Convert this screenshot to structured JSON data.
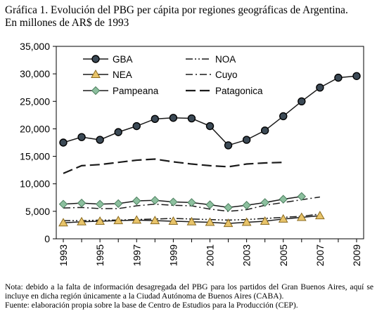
{
  "title": {
    "line1": "Gráfica 1. Evolución del PBG per cápita por regiones geográficas de Argentina.",
    "line2": "En millones de AR$ de 1993"
  },
  "notes": {
    "nota": "Nota: debido a la falta de información desagregada del PBG para los partidos del Gran Buenos Aires, aquí se incluye en dicha región únicamente a la Ciudad Autónoma de Buenos Aires (CABA).",
    "fuente": "Fuente: elaboración propia sobre la base de Centro de Estudios para la Producción (CEP)."
  },
  "chart_data": {
    "type": "line",
    "x": [
      1993,
      1994,
      1995,
      1996,
      1997,
      1998,
      1999,
      2000,
      2001,
      2002,
      2003,
      2004,
      2005,
      2006,
      2007,
      2008,
      2009
    ],
    "ylim": [
      0,
      35000
    ],
    "yticks": [
      0,
      5000,
      10000,
      15000,
      20000,
      25000,
      30000,
      35000
    ],
    "ytick_labels": [
      "0",
      "5,000",
      "10,000",
      "15,000",
      "20,000",
      "25,000",
      "30,000",
      "35,000"
    ],
    "xtick_labels": [
      "1993",
      "1995",
      "1997",
      "1999",
      "2001",
      "2003",
      "2005",
      "2007",
      "2009"
    ],
    "grid": false,
    "legend_position": "top",
    "series": [
      {
        "name": "GBA",
        "color": "#1a1a1a",
        "style": "solid",
        "marker": "circle",
        "values": [
          17500,
          18500,
          18000,
          19400,
          20500,
          21800,
          22000,
          21900,
          20500,
          17000,
          18000,
          19700,
          22300,
          25000,
          27500,
          29300,
          29600
        ]
      },
      {
        "name": "NEA",
        "color": "#1a1a1a",
        "style": "solid",
        "marker": "triangle",
        "values": [
          2900,
          3100,
          3200,
          3300,
          3400,
          3300,
          3200,
          3100,
          3000,
          2800,
          3000,
          3200,
          3600,
          3900,
          4200,
          null,
          null
        ]
      },
      {
        "name": "Pampeana",
        "color": "#1a1a1a",
        "style": "solid",
        "marker": "diamond",
        "values": [
          6300,
          6500,
          6300,
          6400,
          6900,
          7000,
          6700,
          6600,
          6200,
          5700,
          6100,
          6600,
          7200,
          7700,
          null,
          null,
          null
        ]
      },
      {
        "name": "NOA",
        "color": "#1a1a1a",
        "style": "dashdotdot",
        "marker": "none",
        "values": [
          3300,
          3300,
          3400,
          3400,
          3500,
          3600,
          3700,
          3600,
          3500,
          3400,
          3500,
          3700,
          3900,
          4100,
          4500,
          null,
          null
        ]
      },
      {
        "name": "Cuyo",
        "color": "#1a1a1a",
        "style": "dashdot",
        "marker": "none",
        "values": [
          5600,
          5700,
          5500,
          5500,
          6000,
          6300,
          6100,
          6000,
          5400,
          5000,
          5300,
          6100,
          6600,
          7100,
          7600,
          null,
          null
        ]
      },
      {
        "name": "Patagonica",
        "color": "#1a1a1a",
        "style": "dashed",
        "marker": "none",
        "values": [
          11900,
          13300,
          13500,
          13900,
          14300,
          14500,
          14000,
          13600,
          13300,
          13100,
          13600,
          13800,
          13900,
          null,
          null,
          null,
          null
        ]
      }
    ]
  },
  "styles": {
    "marker_fill_diamond": "#8cbf9e",
    "marker_fill_triangle": "#e8c46a",
    "marker_fill_circle": "#3c4a56"
  }
}
